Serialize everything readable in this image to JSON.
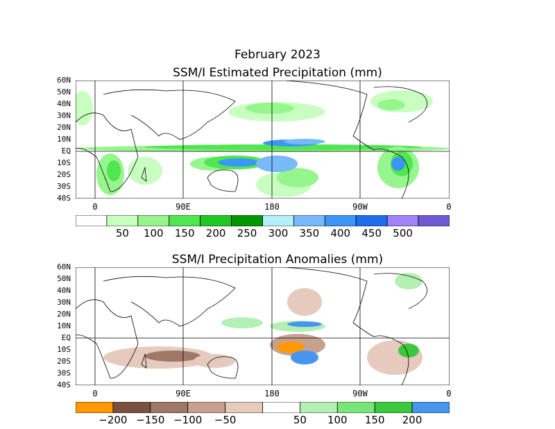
{
  "figure": {
    "title": "February 2023"
  },
  "top_panel": {
    "title": "SSM/I Estimated Precipitation (mm)",
    "lat_labels": [
      "60N",
      "50N",
      "40N",
      "30N",
      "20N",
      "10N",
      "EQ",
      "10S",
      "20S",
      "30S",
      "40S"
    ],
    "lon_labels": [
      "0",
      "90E",
      "180",
      "90W",
      "0"
    ],
    "colorbar": {
      "labels": [
        "50",
        "100",
        "150",
        "200",
        "250",
        "300",
        "350",
        "400",
        "450",
        "500"
      ],
      "colors": [
        "#ffffff",
        "#c8ffc0",
        "#96f58c",
        "#50e650",
        "#22c822",
        "#009600",
        "#b4f0fa",
        "#78b9fa",
        "#3c96f5",
        "#1e6eeb",
        "#a082fa",
        "#6e5ad2"
      ]
    }
  },
  "bottom_panel": {
    "title": "SSM/I Precipitation Anomalies (mm)",
    "lat_labels": [
      "60N",
      "50N",
      "40N",
      "30N",
      "20N",
      "10N",
      "EQ",
      "10S",
      "20S",
      "30S",
      "40S"
    ],
    "lon_labels": [
      "0",
      "90E",
      "180",
      "90W",
      "0"
    ],
    "colorbar": {
      "labels": [
        "−200",
        "−150",
        "−100",
        "−50",
        "50",
        "100",
        "150",
        "200"
      ],
      "colors": [
        "#ff9900",
        "#7a5040",
        "#a07868",
        "#c8a090",
        "#e6cabe",
        "#ffffff",
        "#b4f0b4",
        "#78e678",
        "#3cc83c",
        "#4696f0"
      ]
    }
  }
}
